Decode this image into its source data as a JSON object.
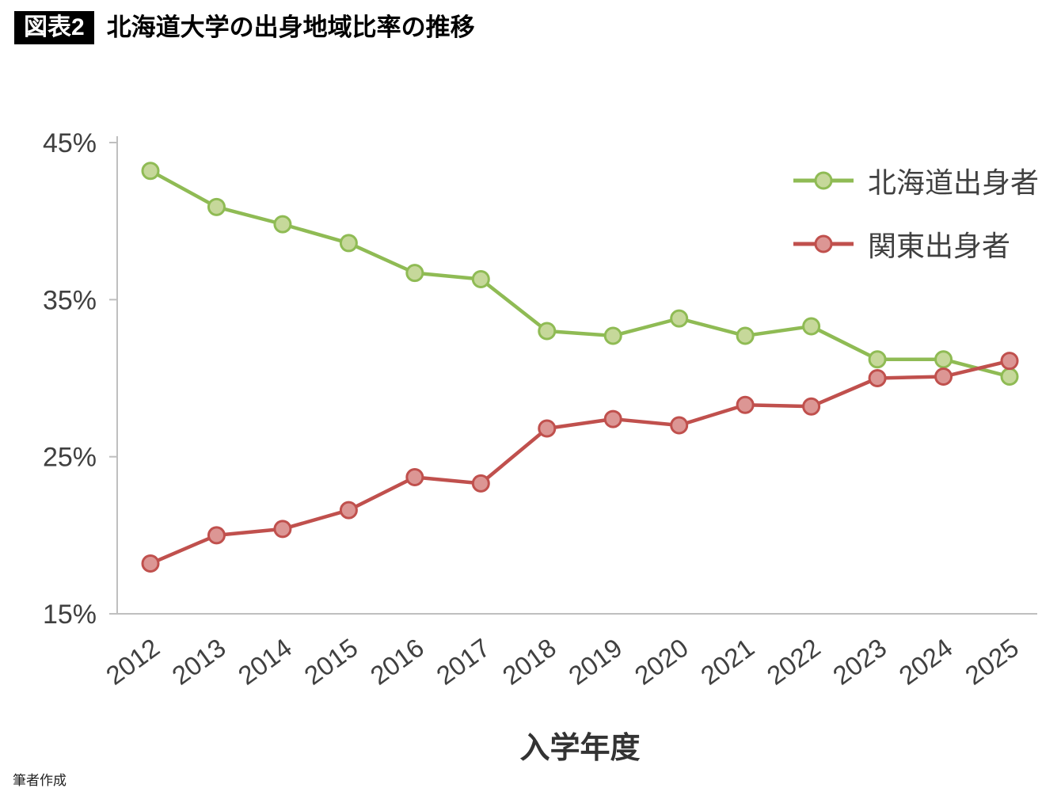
{
  "header": {
    "badge": "図表2",
    "title": "北海道大学の出身地域比率の推移"
  },
  "footer": {
    "credit": "筆者作成"
  },
  "chart_data": {
    "type": "line",
    "title": "北海道大学の出身地域比率の推移",
    "x": [
      "2012",
      "2013",
      "2014",
      "2015",
      "2016",
      "2017",
      "2018",
      "2019",
      "2020",
      "2021",
      "2022",
      "2023",
      "2024",
      "2025"
    ],
    "xlabel": "入学年度",
    "ylabel": "",
    "ylim": [
      15,
      45
    ],
    "yticks": [
      15,
      25,
      35,
      45
    ],
    "ytick_suffix": "%",
    "grid": false,
    "legend_position": "top-right-inside",
    "axis_color": "#bfbfbf",
    "text_color": "#404040",
    "series": [
      {
        "name": "北海道出身者",
        "color": "#8fbb54",
        "marker_fill": "#c6d89a",
        "values": [
          43.2,
          40.9,
          39.8,
          38.6,
          36.7,
          36.3,
          33.0,
          32.7,
          33.8,
          32.7,
          33.3,
          31.2,
          31.2,
          30.1
        ]
      },
      {
        "name": "関東出身者",
        "color": "#c0504d",
        "marker_fill": "#dc9694",
        "values": [
          18.2,
          20.0,
          20.4,
          21.6,
          23.7,
          23.3,
          26.8,
          27.4,
          27.0,
          28.3,
          28.2,
          30.0,
          30.1,
          31.1
        ]
      }
    ]
  }
}
